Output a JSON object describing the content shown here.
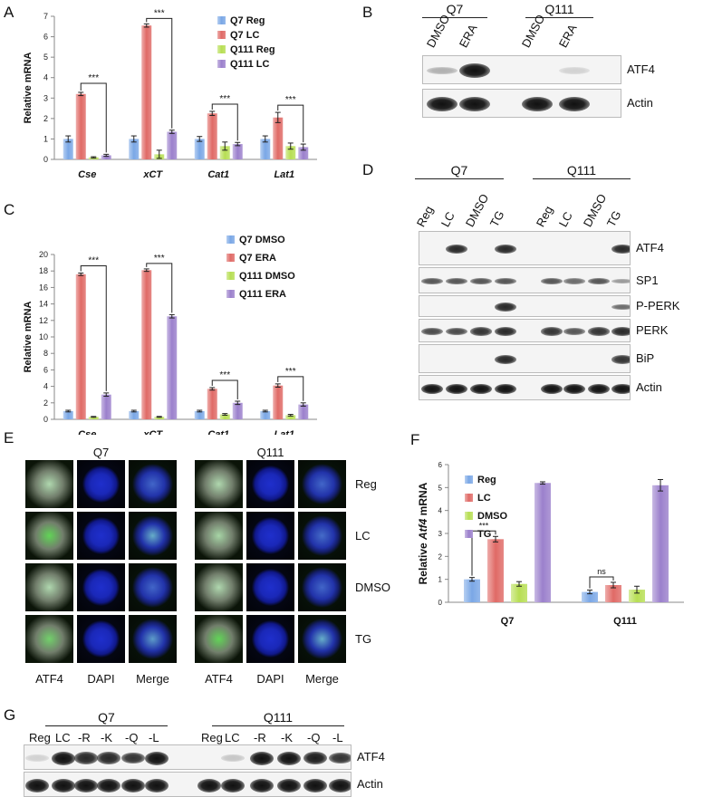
{
  "panels": {
    "A": "A",
    "B": "B",
    "C": "C",
    "D": "D",
    "E": "E",
    "F": "F",
    "G": "G"
  },
  "chartA": {
    "ylabel": "Relative mRNA",
    "yticks": [
      "0",
      "1",
      "2",
      "3",
      "4",
      "5",
      "6",
      "7"
    ],
    "categories": [
      "Cse",
      "xCT",
      "Cat1",
      "Lat1"
    ],
    "legend": [
      "Q7 Reg",
      "Q7 LC",
      "Q111 Reg",
      "Q111 LC"
    ],
    "sig": "***"
  },
  "chartC": {
    "ylabel": "Relative mRNA",
    "yticks": [
      "0",
      "2",
      "4",
      "6",
      "8",
      "10",
      "12",
      "14",
      "16",
      "18",
      "20"
    ],
    "categories": [
      "Cse",
      "xCT",
      "Cat1",
      "Lat1"
    ],
    "legend": [
      "Q7 DMSO",
      "Q7 ERA",
      "Q111 DMSO",
      "Q111 ERA"
    ],
    "sig": "***"
  },
  "chartF": {
    "ylabel_pre": "Relative ",
    "ylabel_gene": "Atf4",
    "ylabel_post": " mRNA",
    "yticks": [
      "0",
      "1",
      "2",
      "3",
      "4",
      "5",
      "6"
    ],
    "categories": [
      "Q7",
      "Q111"
    ],
    "legend": [
      "Reg",
      "LC",
      "DMSO",
      "TG"
    ],
    "sig": "***",
    "ns": "ns"
  },
  "colors": {
    "s1": "#7aa7e6",
    "s2": "#e06a66",
    "s3": "#b7de53",
    "s4": "#9b80cc"
  },
  "chart_data": [
    {
      "type": "bar",
      "categories": [
        "Cse",
        "xCT",
        "Cat1",
        "Lat1"
      ],
      "ylabel": "Relative mRNA",
      "ylim": [
        0,
        7
      ],
      "series": [
        {
          "name": "Q7 Reg",
          "values": [
            1,
            1,
            1,
            1
          ]
        },
        {
          "name": "Q7 LC",
          "values": [
            3.2,
            6.55,
            2.25,
            2.05
          ]
        },
        {
          "name": "Q111 Reg",
          "values": [
            0.1,
            0.25,
            0.65,
            0.65
          ]
        },
        {
          "name": "Q111 LC",
          "values": [
            0.2,
            1.35,
            0.75,
            0.6
          ]
        }
      ],
      "errors": [
        [
          0.15,
          0.15,
          0.12,
          0.15
        ],
        [
          0.08,
          0.08,
          0.1,
          0.25
        ],
        [
          0.03,
          0.2,
          0.2,
          0.15
        ],
        [
          0.05,
          0.08,
          0.08,
          0.15
        ]
      ]
    },
    {
      "type": "bar",
      "categories": [
        "Cse",
        "xCT",
        "Cat1",
        "Lat1"
      ],
      "ylabel": "Relative mRNA",
      "ylim": [
        0,
        20
      ],
      "series": [
        {
          "name": "Q7 DMSO",
          "values": [
            1,
            1,
            1,
            1
          ]
        },
        {
          "name": "Q7 ERA",
          "values": [
            17.6,
            18.1,
            3.7,
            4.1
          ]
        },
        {
          "name": "Q111 DMSO",
          "values": [
            0.3,
            0.3,
            0.6,
            0.5
          ]
        },
        {
          "name": "Q111 ERA",
          "values": [
            3.0,
            12.5,
            2.0,
            1.8
          ]
        }
      ],
      "errors": [
        [
          0.1,
          0.1,
          0.1,
          0.1
        ],
        [
          0.15,
          0.15,
          0.15,
          0.2
        ],
        [
          0.05,
          0.05,
          0.1,
          0.1
        ],
        [
          0.2,
          0.2,
          0.2,
          0.2
        ]
      ]
    },
    {
      "type": "bar",
      "categories": [
        "Q7",
        "Q111"
      ],
      "ylabel": "Relative Atf4 mRNA",
      "ylim": [
        0,
        6
      ],
      "series": [
        {
          "name": "Reg",
          "values": [
            1.0,
            0.45
          ]
        },
        {
          "name": "LC",
          "values": [
            2.75,
            0.75
          ]
        },
        {
          "name": "DMSO",
          "values": [
            0.8,
            0.55
          ]
        },
        {
          "name": "TG",
          "values": [
            5.2,
            5.1
          ]
        }
      ],
      "errors": [
        [
          0.08,
          0.08
        ],
        [
          0.12,
          0.12
        ],
        [
          0.1,
          0.15
        ],
        [
          0.05,
          0.25
        ]
      ]
    }
  ],
  "blotB": {
    "groups": [
      "Q7",
      "Q111"
    ],
    "lanes": [
      "DMSO",
      "ERA",
      "DMSO",
      "ERA"
    ],
    "rows": [
      "ATF4",
      "Actin"
    ]
  },
  "blotD": {
    "groups": [
      "Q7",
      "Q111"
    ],
    "lanes": [
      "Reg",
      "LC",
      "DMSO",
      "TG",
      "Reg",
      "LC",
      "DMSO",
      "TG"
    ],
    "rows": [
      "ATF4",
      "SP1",
      "P-PERK",
      "PERK",
      "BiP",
      "Actin"
    ]
  },
  "micro": {
    "groups": [
      "Q7",
      "Q111"
    ],
    "cols": [
      "ATF4",
      "DAPI",
      "Merge",
      "ATF4",
      "DAPI",
      "Merge"
    ],
    "rows": [
      "Reg",
      "LC",
      "DMSO",
      "TG"
    ]
  },
  "blotG": {
    "groups": [
      "Q7",
      "Q111"
    ],
    "lanes": [
      "Reg",
      "LC",
      "-R",
      "-K",
      "-Q",
      "-L",
      "Reg",
      "LC",
      "-R",
      "-K",
      "-Q",
      "-L"
    ],
    "rows": [
      "ATF4",
      "Actin"
    ]
  }
}
